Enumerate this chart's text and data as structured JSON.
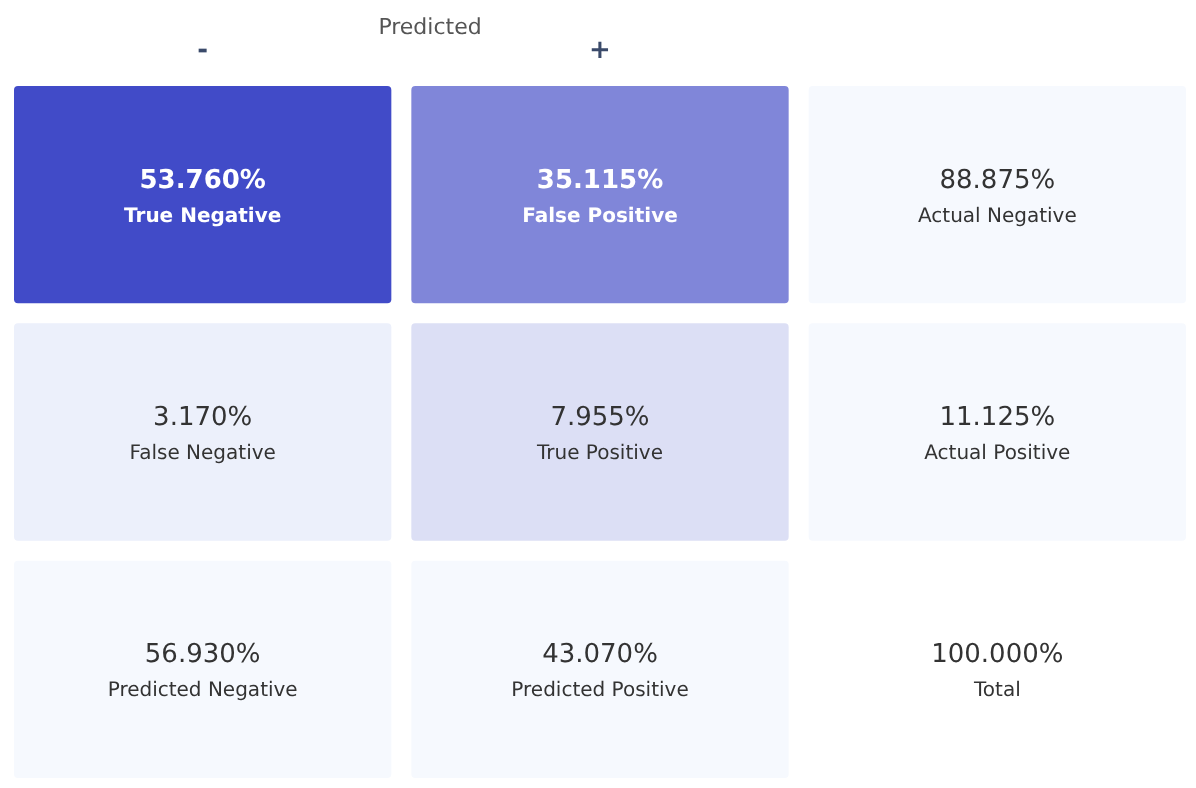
{
  "chart_data": {
    "type": "heatmap",
    "xlabel": "Predicted",
    "categories": [
      "-",
      "+",
      null
    ],
    "y_categories": [
      null,
      null,
      null
    ],
    "tick_labels": "x",
    "cells": [
      [
        53.76,
        35.115,
        88.875
      ],
      [
        3.17,
        7.955,
        11.125
      ],
      [
        56.93,
        43.07,
        100.0
      ]
    ],
    "cell_labels": [
      [
        "53.760%\nTrue Negative",
        "35.115%\nFalse Positive",
        "88.875%\nActual Negative"
      ],
      [
        "3.170%\nFalse Negative",
        "7.955%\nTrue Positive",
        "11.125%\nActual Positive"
      ],
      [
        "56.930%\nPredicted Negative",
        "43.070%\nPredicted Positive",
        "100.000%\nTotal"
      ]
    ],
    "colors": [
      [
        "#414bc8",
        "#8086d9",
        "#f6f9fe"
      ],
      [
        "#ecf0fb",
        "#dcdff5",
        "#f6f9fe"
      ],
      [
        "#f6f9fe",
        "#f6f9fe",
        "#ffffff"
      ]
    ]
  }
}
